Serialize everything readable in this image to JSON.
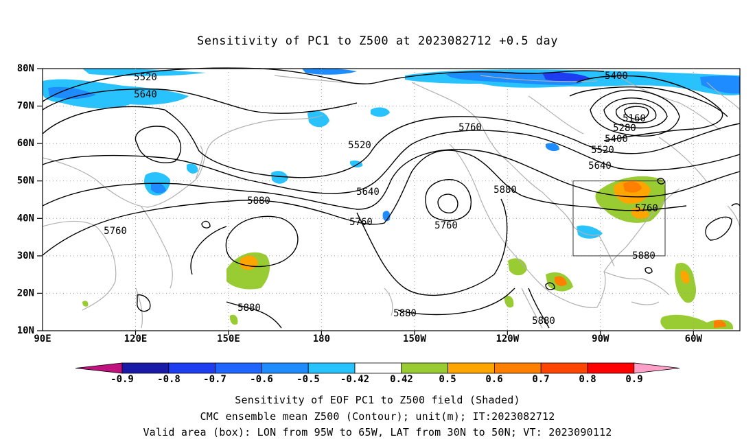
{
  "title": "Sensitivity of PC1 to Z500 at 2023082712 +0.5 day",
  "lat_labels": [
    "80N",
    "70N",
    "60N",
    "50N",
    "40N",
    "30N",
    "20N",
    "10N"
  ],
  "lon_labels": [
    "90E",
    "120E",
    "150E",
    "180",
    "150W",
    "120W",
    "90W",
    "60W"
  ],
  "contour_labels": [
    {
      "text": "5520"
    },
    {
      "text": "5640"
    },
    {
      "text": "5400"
    },
    {
      "text": "5160"
    },
    {
      "text": "5280"
    },
    {
      "text": "5400"
    },
    {
      "text": "5520"
    },
    {
      "text": "5640"
    },
    {
      "text": "5760"
    },
    {
      "text": "5520"
    },
    {
      "text": "5640"
    },
    {
      "text": "5760"
    },
    {
      "text": "5760"
    },
    {
      "text": "5880"
    },
    {
      "text": "5760"
    },
    {
      "text": "5880"
    },
    {
      "text": "5880"
    },
    {
      "text": "5880"
    },
    {
      "text": "5880"
    },
    {
      "text": "5880"
    },
    {
      "text": "5880"
    },
    {
      "text": "5760"
    }
  ],
  "colorbar": {
    "labels": [
      "-0.9",
      "-0.8",
      "-0.7",
      "-0.6",
      "-0.5",
      "-0.42",
      "0.42",
      "0.5",
      "0.6",
      "0.7",
      "0.8",
      "0.9"
    ],
    "colors": [
      "#1a1aa8",
      "#1f3df0",
      "#1f64ff",
      "#1e8cff",
      "#28c3ff",
      "#ffffff",
      "#99cc33",
      "#ffa500",
      "#ff7f00",
      "#ff4500",
      "#ff0000"
    ],
    "low_extend_color": "#c0127f",
    "high_extend_color": "#ffa0c8"
  },
  "caption": {
    "line1": "Sensitivity of EOF PC1 to Z500 field (Shaded)",
    "line2": "CMC ensemble mean Z500 (Contour); unit(m); IT:2023082712",
    "line3": "Valid area (box): LON from 95W to 65W, LAT from 30N to 50N; VT: 2023090112"
  },
  "box": {
    "lon": [
      "95W",
      "65W"
    ],
    "lat": [
      "30N",
      "50N"
    ]
  }
}
